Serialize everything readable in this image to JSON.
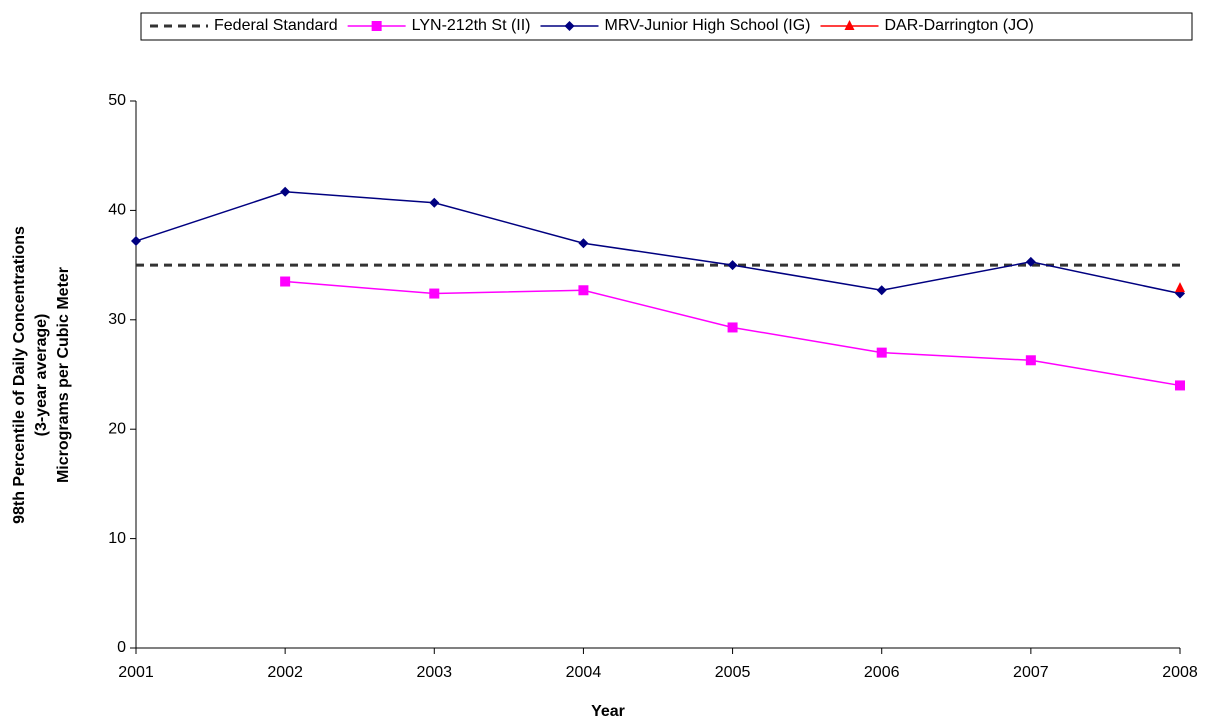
{
  "chart_data": {
    "type": "line",
    "ylabel": [
      "98th Percentile of Daily Concentrations",
      "(3-year average)",
      "Micrograms per Cubic Meter"
    ],
    "xlabel": "Year",
    "x": [
      2001,
      2002,
      2003,
      2004,
      2005,
      2006,
      2007,
      2008
    ],
    "xlim": [
      2001,
      2008
    ],
    "xticks": [
      2001,
      2002,
      2003,
      2004,
      2005,
      2006,
      2007,
      2008
    ],
    "ylim": [
      0,
      50
    ],
    "yticks": [
      0,
      10,
      20,
      30,
      40,
      50
    ],
    "grid": false,
    "legend": "top",
    "series": [
      {
        "name": "Federal Standard",
        "color": "#333333",
        "dash": true,
        "marker": "none",
        "values": [
          35,
          35,
          35,
          35,
          35,
          35,
          35,
          35
        ]
      },
      {
        "name": "LYN-212th St (II)",
        "color": "#ff00ff",
        "marker": "square",
        "values": [
          null,
          33.5,
          32.4,
          32.7,
          29.3,
          27.0,
          26.3,
          24.0
        ]
      },
      {
        "name": "MRV-Junior High School (IG)",
        "color": "#000080",
        "marker": "diamond",
        "values": [
          37.2,
          41.7,
          40.7,
          37.0,
          35.0,
          32.7,
          35.3,
          32.4
        ]
      },
      {
        "name": "DAR-Darrington (JO)",
        "color": "#ff0000",
        "marker": "triangle",
        "values": [
          null,
          null,
          null,
          null,
          null,
          null,
          null,
          32.9
        ]
      }
    ]
  }
}
